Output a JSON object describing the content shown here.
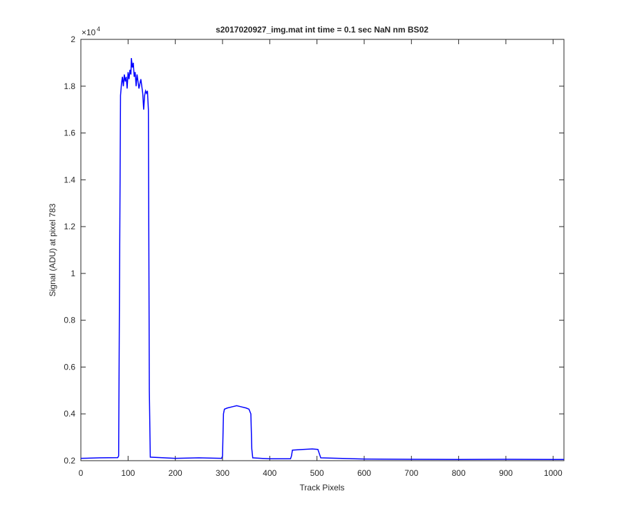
{
  "chart_data": {
    "type": "line",
    "title": "s2017020927_img.mat int time = 0.1 sec  NaN nm BS02",
    "x_label": "Track Pixels",
    "y_label": "Signal (ADU) at pixel 783",
    "y_exponent_base": "×10",
    "y_exponent": 4,
    "xlim": [
      0,
      1023
    ],
    "xticks": [
      0,
      100,
      200,
      300,
      400,
      500,
      600,
      700,
      800,
      900,
      1000
    ],
    "ylim": [
      0.2,
      2
    ],
    "yticks": [
      0.2,
      0.4,
      0.6,
      0.8,
      1,
      1.2,
      1.4,
      1.6,
      1.8,
      2
    ],
    "grid": false,
    "series": [
      {
        "color": "#0000ff",
        "x": [
          0,
          40,
          78,
          80,
          82,
          84,
          86,
          88,
          90,
          92,
          94,
          96,
          98,
          100,
          102,
          104,
          106,
          107,
          109,
          111,
          113,
          115,
          117,
          119,
          121,
          123,
          125,
          127,
          129,
          131,
          133,
          135,
          137,
          139,
          141,
          143,
          145,
          147,
          200,
          250,
          298,
          300,
          302,
          304,
          310,
          320,
          330,
          340,
          350,
          356,
          360,
          362,
          364,
          400,
          444,
          446,
          448,
          470,
          490,
          502,
          505,
          508,
          600,
          700,
          800,
          900,
          1000,
          1023
        ],
        "values": [
          0.21,
          0.212,
          0.213,
          0.22,
          1.0,
          1.76,
          1.81,
          1.84,
          1.8,
          1.85,
          1.82,
          1.84,
          1.79,
          1.86,
          1.83,
          1.87,
          1.85,
          1.92,
          1.88,
          1.9,
          1.84,
          1.86,
          1.8,
          1.85,
          1.82,
          1.79,
          1.81,
          1.83,
          1.8,
          1.77,
          1.7,
          1.76,
          1.78,
          1.77,
          1.78,
          1.7,
          0.5,
          0.215,
          0.21,
          0.212,
          0.21,
          0.22,
          0.4,
          0.42,
          0.425,
          0.43,
          0.435,
          0.43,
          0.425,
          0.42,
          0.4,
          0.25,
          0.212,
          0.208,
          0.208,
          0.22,
          0.245,
          0.248,
          0.25,
          0.248,
          0.23,
          0.212,
          0.207,
          0.206,
          0.205,
          0.206,
          0.205,
          0.205
        ]
      }
    ]
  }
}
